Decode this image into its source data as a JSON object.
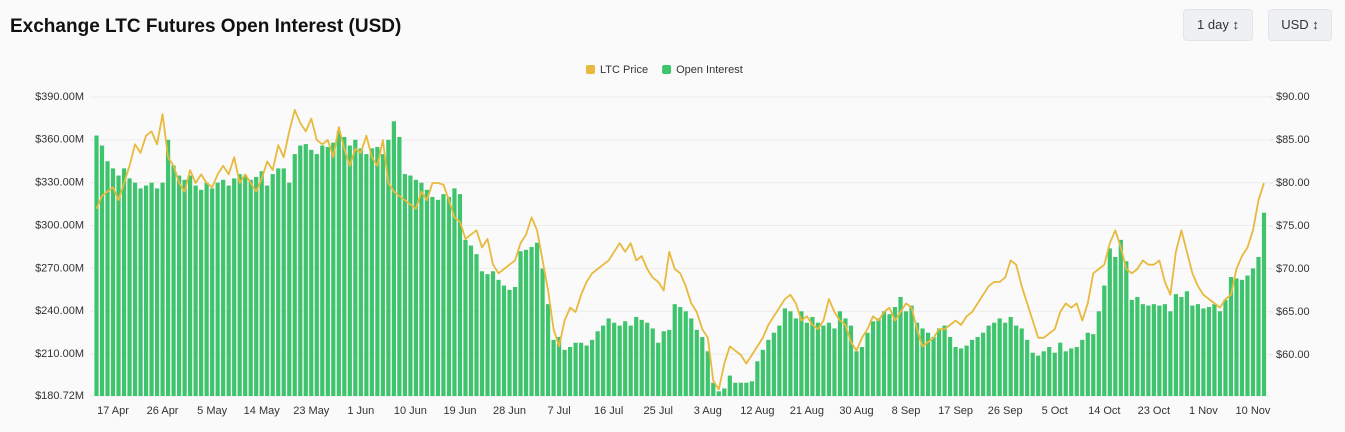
{
  "ui": {
    "controls": [
      "1 day",
      "USD"
    ]
  },
  "chart_data": {
    "type": "bar-line",
    "title": "Exchange LTC Futures Open Interest (USD)",
    "categories": [
      null,
      null,
      null,
      "17 Apr",
      null,
      null,
      null,
      null,
      null,
      null,
      null,
      null,
      "26 Apr",
      null,
      null,
      null,
      null,
      null,
      null,
      null,
      null,
      "5 May",
      null,
      null,
      null,
      null,
      null,
      null,
      null,
      null,
      "14 May",
      null,
      null,
      null,
      null,
      null,
      null,
      null,
      null,
      "23 May",
      null,
      null,
      null,
      null,
      null,
      null,
      null,
      null,
      "1 Jun",
      null,
      null,
      null,
      null,
      null,
      null,
      null,
      null,
      "10 Jun",
      null,
      null,
      null,
      null,
      null,
      null,
      null,
      null,
      "19 Jun",
      null,
      null,
      null,
      null,
      null,
      null,
      null,
      null,
      "28 Jun",
      null,
      null,
      null,
      null,
      null,
      null,
      null,
      null,
      "7 Jul",
      null,
      null,
      null,
      null,
      null,
      null,
      null,
      null,
      "16 Jul",
      null,
      null,
      null,
      null,
      null,
      null,
      null,
      null,
      "25 Jul",
      null,
      null,
      null,
      null,
      null,
      null,
      null,
      null,
      "3 Aug",
      null,
      null,
      null,
      null,
      null,
      null,
      null,
      null,
      "12 Aug",
      null,
      null,
      null,
      null,
      null,
      null,
      null,
      null,
      "21 Aug",
      null,
      null,
      null,
      null,
      null,
      null,
      null,
      null,
      "30 Aug",
      null,
      null,
      null,
      null,
      null,
      null,
      null,
      null,
      "8 Sep",
      null,
      null,
      null,
      null,
      null,
      null,
      null,
      null,
      "17 Sep",
      null,
      null,
      null,
      null,
      null,
      null,
      null,
      null,
      "26 Sep",
      null,
      null,
      null,
      null,
      null,
      null,
      null,
      null,
      "5 Oct",
      null,
      null,
      null,
      null,
      null,
      null,
      null,
      null,
      "14 Oct",
      null,
      null,
      null,
      null,
      null,
      null,
      null,
      null,
      "23 Oct",
      null,
      null,
      null,
      null,
      null,
      null,
      null,
      null,
      "1 Nov",
      null,
      null,
      null,
      null,
      null,
      null,
      null,
      null,
      "10 Nov",
      null,
      null
    ],
    "series": [
      {
        "name": "LTC Price",
        "type": "line",
        "axis": "y2",
        "color": "#e8b93c",
        "values": [
          77,
          78.5,
          79,
          79.5,
          78,
          80,
          82,
          84.5,
          83.5,
          85.5,
          86,
          84.5,
          88,
          83,
          82,
          80,
          79,
          81.5,
          80,
          81,
          80,
          79.5,
          81,
          82,
          81,
          83,
          80,
          81,
          80,
          79,
          80.5,
          82.5,
          81.5,
          84.4,
          83,
          86,
          88.5,
          87,
          86,
          87.5,
          85,
          84.5,
          85,
          83,
          86.5,
          84,
          82,
          84,
          83.5,
          85.5,
          83,
          82,
          85,
          80,
          79,
          78.5,
          78,
          77.5,
          77,
          79,
          78,
          80,
          80,
          79.8,
          78,
          76,
          75.5,
          73.5,
          74,
          74.5,
          72.5,
          73.5,
          70.5,
          69.5,
          70,
          70.5,
          71,
          73,
          74,
          76,
          74.5,
          71,
          67.5,
          63,
          61,
          64,
          65.5,
          65,
          67,
          68.5,
          69.5,
          70,
          70.5,
          71,
          72,
          73,
          72,
          73,
          71,
          71.5,
          70,
          69,
          68.5,
          67.5,
          72,
          70,
          69.5,
          68,
          66,
          65,
          63,
          62,
          57,
          56,
          59,
          61,
          60.5,
          60,
          59,
          60,
          61,
          62,
          63.5,
          64.5,
          65.5,
          66.5,
          67,
          66,
          64,
          64.5,
          63.5,
          63,
          64,
          66.5,
          65,
          64,
          63.5,
          61.5,
          60.5,
          62,
          63,
          64.5,
          64,
          65,
          65.5,
          64,
          65,
          66,
          65.5,
          63,
          61,
          61.5,
          62,
          63,
          63,
          63.5,
          64,
          63.5,
          64.5,
          65,
          66,
          67,
          68,
          68.5,
          68.5,
          69,
          71,
          70.5,
          68,
          66,
          64,
          62,
          62,
          62.5,
          63,
          65,
          66,
          65.5,
          66,
          64,
          66,
          69.5,
          70,
          70.5,
          73,
          74.5,
          72.5,
          70,
          69.5,
          70,
          71,
          70.5,
          70.5,
          71,
          68.5,
          67,
          72,
          74.5,
          72,
          69.5,
          68,
          67,
          66.5,
          66,
          65.5,
          66.5,
          67,
          70,
          71.5,
          72.5,
          74.5,
          78,
          80
        ]
      },
      {
        "name": "Open Interest",
        "type": "bar",
        "axis": "y",
        "color": "#3ec46d",
        "values": [
          363,
          356,
          345,
          340,
          335,
          340,
          333,
          330,
          326,
          328,
          330,
          326,
          330,
          360,
          342,
          335,
          332,
          335,
          328,
          325,
          330,
          326,
          330,
          332,
          328,
          333,
          336,
          335,
          332,
          334,
          338,
          328,
          336,
          340,
          340,
          330,
          350,
          356,
          357,
          353,
          350,
          356,
          355,
          358,
          366,
          362,
          356,
          360,
          354,
          350,
          354,
          355,
          350,
          360,
          373,
          362,
          336,
          335,
          332,
          330,
          325,
          320,
          318,
          322,
          320,
          326,
          322,
          290,
          286,
          280,
          268,
          266,
          268,
          262,
          258,
          255,
          257,
          282,
          283,
          285,
          288,
          270,
          245,
          220,
          222,
          213,
          215,
          218,
          218,
          216,
          220,
          226,
          230,
          235,
          232,
          230,
          233,
          230,
          236,
          234,
          232,
          228,
          218,
          226,
          227,
          245,
          243,
          240,
          235,
          227,
          222,
          212,
          190,
          184,
          186,
          195,
          190,
          190,
          190,
          191,
          205,
          213,
          220,
          225,
          230,
          242,
          240,
          235,
          240,
          232,
          236,
          232,
          230,
          232,
          228,
          240,
          235,
          230,
          212,
          215,
          225,
          233,
          235,
          240,
          238,
          243,
          250,
          240,
          244,
          232,
          228,
          225,
          222,
          228,
          230,
          222,
          215,
          214,
          216,
          220,
          222,
          225,
          230,
          232,
          235,
          232,
          236,
          230,
          228,
          220,
          211,
          209,
          212,
          215,
          211,
          218,
          212,
          214,
          215,
          220,
          225,
          224,
          240,
          258,
          284,
          278,
          290,
          275,
          248,
          250,
          245,
          244,
          245,
          244,
          245,
          240,
          252,
          250,
          254,
          244,
          245,
          242,
          243,
          245,
          240,
          248,
          264,
          263,
          262,
          265,
          270,
          278,
          309
        ]
      }
    ],
    "ylim": [
      180.72,
      395
    ],
    "yticks": [
      {
        "value": 180.72,
        "label": "$180.72M"
      },
      {
        "value": 210,
        "label": "$210.00M"
      },
      {
        "value": 240,
        "label": "$240.00M"
      },
      {
        "value": 270,
        "label": "$270.00M"
      },
      {
        "value": 300,
        "label": "$300.00M"
      },
      {
        "value": 330,
        "label": "$330.00M"
      },
      {
        "value": 360,
        "label": "$360.00M"
      },
      {
        "value": 390,
        "label": "$390.00M"
      }
    ],
    "y2lim": [
      55.23,
      90.84
    ],
    "y2ticks": [
      {
        "value": 60,
        "label": "$60.00"
      },
      {
        "value": 65,
        "label": "$65.00"
      },
      {
        "value": 70,
        "label": "$70.00"
      },
      {
        "value": 75,
        "label": "$75.00"
      },
      {
        "value": 80,
        "label": "$80.00"
      },
      {
        "value": 85,
        "label": "$85.00"
      },
      {
        "value": 90,
        "label": "$90.00"
      }
    ],
    "grid": true,
    "legend": "top"
  }
}
